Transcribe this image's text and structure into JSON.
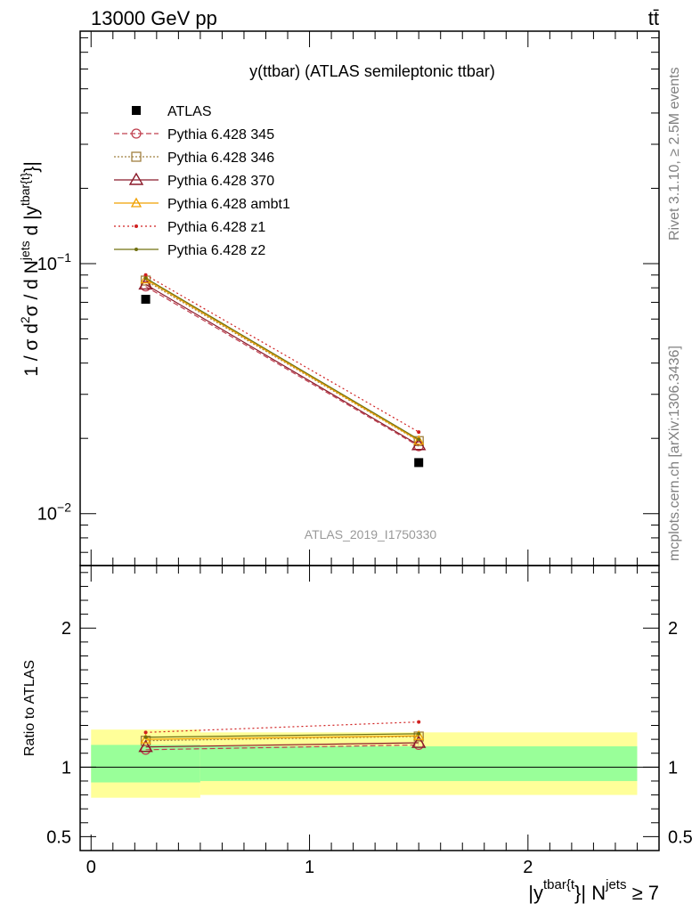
{
  "header": {
    "left": "13000 GeV pp",
    "right": "tt̄"
  },
  "side_labels": {
    "rivet": "Rivet 3.1.10, ≥ 2.5M events",
    "mcplots": "mcplots.cern.ch [arXiv:1306.3436]"
  },
  "colors": {
    "data": "#000000",
    "p345": "#c0404f",
    "p346": "#a08040",
    "p370": "#8b1a2a",
    "ambt1": "#f0a000",
    "z1": "#d02020",
    "z2": "#707010",
    "band_inner": "#99ff99",
    "band_outer": "#ffff99"
  },
  "chart_data": [
    {
      "type": "line",
      "title": "y(ttbar) (ATLAS semileptonic ttbar)",
      "ylabel_parts": {
        "a": "1 / σ d",
        "b": "2",
        "c": "σ / d N",
        "d": "jets",
        "e": " d |y",
        "f": "tbar{t}",
        "g": "}|"
      },
      "watermark": "ATLAS_2019_I1750330",
      "yscale": "log",
      "ylim": [
        0.0062,
        0.85
      ],
      "xlim": [
        -0.05,
        2.6
      ],
      "y_ticks": [
        {
          "value": 0.1,
          "base": "10",
          "exp": "−1"
        },
        {
          "value": 0.01,
          "base": "10",
          "exp": "−2"
        }
      ],
      "x": [
        0.25,
        1.5
      ],
      "bin_edges": [
        0,
        0.5,
        2.5
      ],
      "series": [
        {
          "name": "ATLAS",
          "key": "data",
          "values": [
            0.072,
            0.016
          ],
          "marker": "square",
          "dash": "none"
        },
        {
          "name": "Pythia 6.428 345",
          "key": "p345",
          "values": [
            0.081,
            0.0186
          ],
          "marker": "circle",
          "dash": "6,3"
        },
        {
          "name": "Pythia 6.428 346",
          "key": "p346",
          "values": [
            0.0855,
            0.0195
          ],
          "marker": "square-open",
          "dash": "2,2"
        },
        {
          "name": "Pythia 6.428 370",
          "key": "p370",
          "values": [
            0.0825,
            0.0188
          ],
          "marker": "triangle",
          "dash": "none"
        },
        {
          "name": "Pythia 6.428 ambt1",
          "key": "ambt1",
          "values": [
            0.0865,
            0.0196
          ],
          "marker": "triangle-small",
          "dash": "none"
        },
        {
          "name": "Pythia 6.428 z1",
          "key": "z1",
          "values": [
            0.09,
            0.0212
          ],
          "marker": "dot",
          "dash": "2,3"
        },
        {
          "name": "Pythia 6.428 z2",
          "key": "z2",
          "values": [
            0.0875,
            0.0198
          ],
          "marker": "dot",
          "dash": "none"
        }
      ]
    },
    {
      "type": "line",
      "ylabel": "Ratio to ATLAS",
      "xlabel_parts": {
        "a": "|y",
        "b": "tbar{t",
        "c": "}| N",
        "d": "jets",
        "e": " ≥ 7"
      },
      "ylim": [
        0.4,
        2.45
      ],
      "xlim": [
        -0.05,
        2.6
      ],
      "y_ticks": [
        0.5,
        1,
        2
      ],
      "y_tick_labels": [
        "0.5",
        "1",
        "2"
      ],
      "x_ticks": [
        0,
        1,
        2
      ],
      "x_tick_labels": [
        "0",
        "1",
        "2"
      ],
      "bands": [
        {
          "x0": 0,
          "x1": 0.5,
          "inner": [
            0.89,
            1.16
          ],
          "outer": [
            0.78,
            1.27
          ]
        },
        {
          "x0": 0.5,
          "x1": 2.5,
          "inner": [
            0.9,
            1.15
          ],
          "outer": [
            0.8,
            1.25
          ]
        }
      ],
      "x": [
        0.25,
        1.5
      ],
      "series": [
        {
          "name": "Pythia 6.428 345",
          "key": "p345",
          "values": [
            1.125,
            1.16
          ],
          "marker": "circle",
          "dash": "6,3"
        },
        {
          "name": "Pythia 6.428 346",
          "key": "p346",
          "values": [
            1.19,
            1.22
          ],
          "marker": "square-open",
          "dash": "2,2"
        },
        {
          "name": "Pythia 6.428 370",
          "key": "p370",
          "values": [
            1.145,
            1.175
          ],
          "marker": "triangle",
          "dash": "none"
        },
        {
          "name": "Pythia 6.428 ambt1",
          "key": "ambt1",
          "values": [
            1.2,
            1.225
          ],
          "marker": "triangle-small",
          "dash": "none"
        },
        {
          "name": "Pythia 6.428 z1",
          "key": "z1",
          "values": [
            1.25,
            1.325
          ],
          "marker": "dot",
          "dash": "2,3"
        },
        {
          "name": "Pythia 6.428 z2",
          "key": "z2",
          "values": [
            1.215,
            1.24
          ],
          "marker": "dot",
          "dash": "none"
        }
      ]
    }
  ]
}
